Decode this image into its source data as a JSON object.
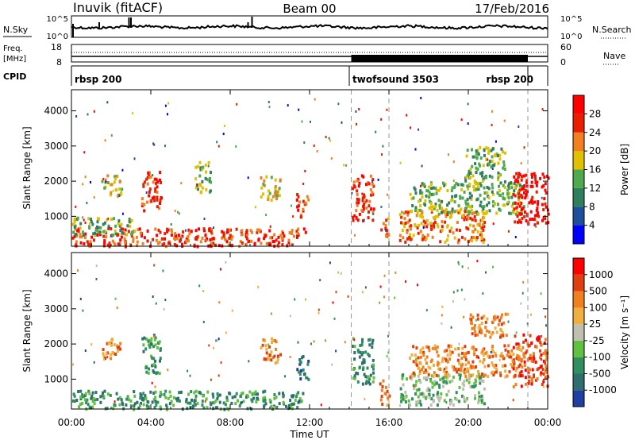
{
  "header": {
    "station": "Inuvik (fitACF)",
    "beam": "Beam 00",
    "date": "17/Feb/2016"
  },
  "top_panels": {
    "nsky_label": "N.Sky",
    "nsky_ticks": [
      "10^5",
      "10^0"
    ],
    "nsearch_label": "N.Search",
    "nsearch_ticks": [
      "10^5",
      "10^0"
    ],
    "freq_label_line1": "Freq.",
    "freq_label_line2": "[MHz]",
    "freq_ticks": [
      "18",
      "8"
    ],
    "nave_label": "Nave",
    "nave_ticks": [
      "60",
      "0"
    ],
    "cpid_label": "CPID",
    "cpid_segments": [
      {
        "label": "rbsp 200",
        "start_hour": 0.0,
        "end_hour": 14.0
      },
      {
        "label": "twofsound 3503",
        "start_hour": 14.0,
        "end_hour": 23.0
      },
      {
        "label": "rbsp 200",
        "start_hour": 23.0,
        "end_hour": 24.0
      }
    ]
  },
  "chart_data": [
    {
      "type": "heatmap",
      "title": "",
      "xlabel": "Time UT",
      "ylabel": "Slant Range [km]",
      "x_tick_labels": [
        "00:00",
        "04:00",
        "08:00",
        "12:00",
        "16:00",
        "20:00",
        "00:00"
      ],
      "x_hours": [
        0,
        4,
        8,
        12,
        16,
        20,
        24
      ],
      "xlim_hours": [
        0,
        24
      ],
      "ylim": [
        150,
        4600
      ],
      "y_ticks": [
        1000,
        2000,
        3000,
        4000
      ],
      "colorbar": {
        "label": "Power [dB]",
        "ticks": [
          "4",
          "8",
          "12",
          "16",
          "20",
          "24",
          "28"
        ],
        "colors": [
          "#0000ff",
          "#1f4e9c",
          "#2f7f5f",
          "#4faa4f",
          "#e0c000",
          "#f08020",
          "#e82000",
          "#ff0000"
        ]
      },
      "echo_regions": [
        {
          "t0": 0.0,
          "t1": 11.8,
          "r0": 180,
          "r1": 700,
          "level": 6
        },
        {
          "t0": 0.0,
          "t1": 3.2,
          "r0": 500,
          "r1": 1000,
          "level": 3
        },
        {
          "t0": 1.5,
          "t1": 2.5,
          "r0": 1600,
          "r1": 2200,
          "level": 4
        },
        {
          "t0": 3.5,
          "t1": 4.5,
          "r0": 1200,
          "r1": 2300,
          "level": 6
        },
        {
          "t0": 6.2,
          "t1": 7.0,
          "r0": 1700,
          "r1": 2600,
          "level": 3
        },
        {
          "t0": 9.5,
          "t1": 10.5,
          "r0": 1500,
          "r1": 2200,
          "level": 4
        },
        {
          "t0": 11.3,
          "t1": 11.9,
          "r0": 1000,
          "r1": 1700,
          "level": 6
        },
        {
          "t0": 14.1,
          "t1": 15.2,
          "r0": 900,
          "r1": 2200,
          "level": 6
        },
        {
          "t0": 15.5,
          "t1": 16.0,
          "r0": 400,
          "r1": 1000,
          "level": 5
        },
        {
          "t0": 16.5,
          "t1": 20.8,
          "r0": 300,
          "r1": 1200,
          "level": 5
        },
        {
          "t0": 17.0,
          "t1": 22.8,
          "r0": 1100,
          "r1": 2000,
          "level": 3
        },
        {
          "t0": 19.8,
          "t1": 21.8,
          "r0": 1800,
          "r1": 3000,
          "level": 3
        },
        {
          "t0": 22.2,
          "t1": 24.0,
          "r0": 800,
          "r1": 2300,
          "level": 7
        }
      ]
    },
    {
      "type": "heatmap",
      "title": "",
      "xlabel": "Time UT",
      "ylabel": "Slant Range [km]",
      "x_tick_labels": [
        "00:00",
        "04:00",
        "08:00",
        "12:00",
        "16:00",
        "20:00",
        "00:00"
      ],
      "x_hours": [
        0,
        4,
        8,
        12,
        16,
        20,
        24
      ],
      "xlim_hours": [
        0,
        24
      ],
      "ylim": [
        150,
        4600
      ],
      "y_ticks": [
        1000,
        2000,
        3000,
        4000
      ],
      "colorbar": {
        "label": "Velocity [m s⁻¹]",
        "ticks": [
          "1000",
          "500",
          "100",
          "25",
          "-25",
          "-100",
          "-500",
          "-1000"
        ],
        "colors": [
          "#2040a0",
          "#2e6e6e",
          "#2f8f5f",
          "#60c040",
          "#c0c0b0",
          "#f0b040",
          "#f08020",
          "#e04010",
          "#ff0000"
        ]
      },
      "echo_regions": [
        {
          "t0": 0.0,
          "t1": 11.8,
          "r0": 180,
          "r1": 700,
          "level": 2
        },
        {
          "t0": 1.5,
          "t1": 2.5,
          "r0": 1600,
          "r1": 2200,
          "level": 6
        },
        {
          "t0": 3.5,
          "t1": 4.5,
          "r0": 1200,
          "r1": 2300,
          "level": 2
        },
        {
          "t0": 9.5,
          "t1": 10.5,
          "r0": 1500,
          "r1": 2200,
          "level": 6
        },
        {
          "t0": 11.3,
          "t1": 11.9,
          "r0": 1000,
          "r1": 1700,
          "level": 1
        },
        {
          "t0": 14.1,
          "t1": 15.2,
          "r0": 900,
          "r1": 2200,
          "level": 2
        },
        {
          "t0": 15.5,
          "t1": 16.0,
          "r0": 300,
          "r1": 1000,
          "level": 6
        },
        {
          "t0": 16.5,
          "t1": 20.8,
          "r0": 300,
          "r1": 1200,
          "level": 3
        },
        {
          "t0": 17.0,
          "t1": 22.8,
          "r0": 1100,
          "r1": 2000,
          "level": 6
        },
        {
          "t0": 20.0,
          "t1": 22.0,
          "r0": 2200,
          "r1": 2900,
          "level": 6
        },
        {
          "t0": 22.2,
          "t1": 24.0,
          "r0": 800,
          "r1": 2300,
          "level": 7
        }
      ]
    }
  ]
}
